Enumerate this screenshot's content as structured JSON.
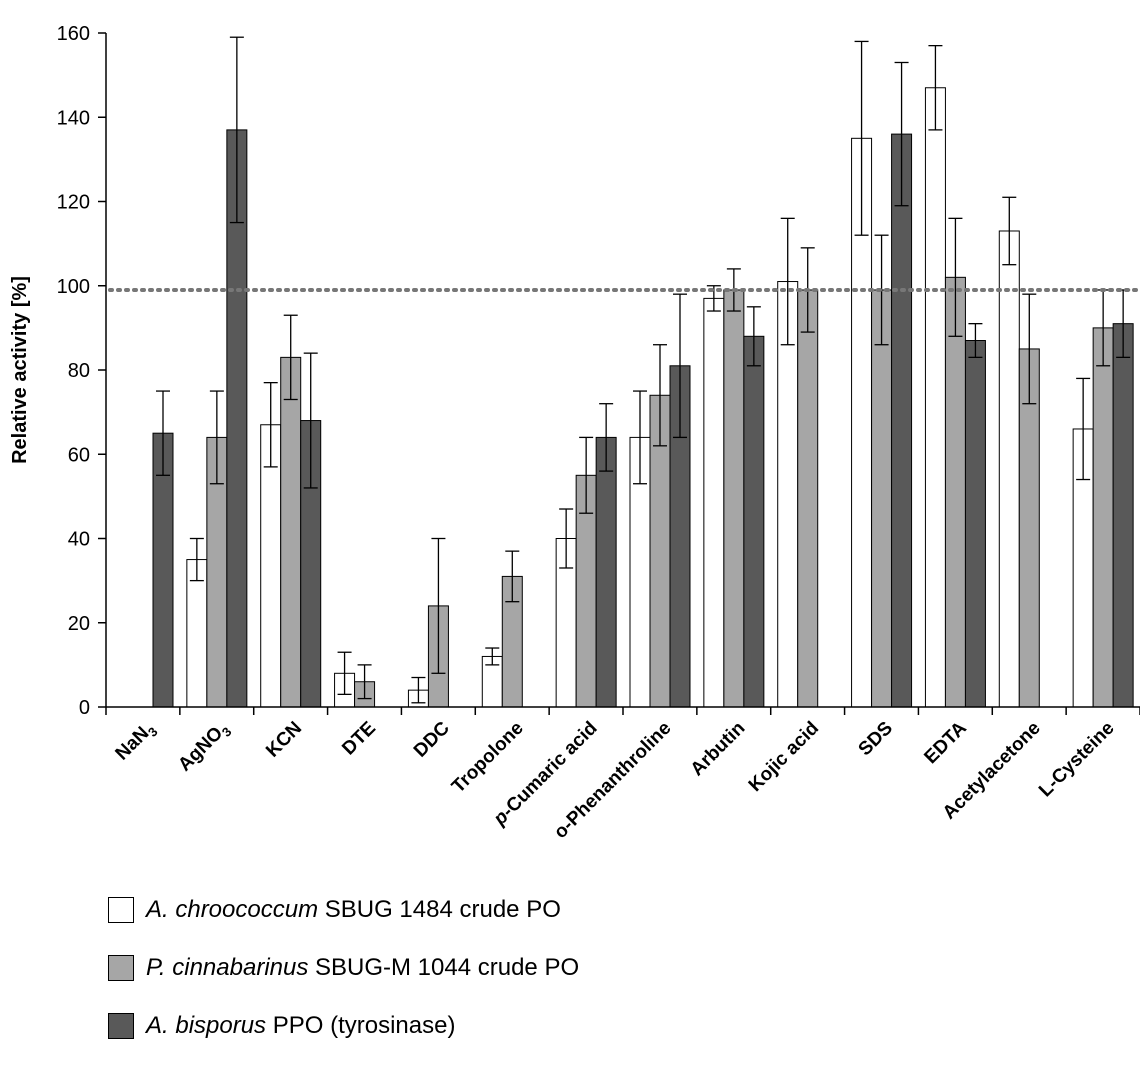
{
  "chart_data": {
    "type": "bar",
    "title": "",
    "xlabel": "",
    "ylabel": "Relative activity [%]",
    "ylim": [
      0,
      160
    ],
    "yticks": [
      0,
      20,
      40,
      60,
      80,
      100,
      120,
      140,
      160
    ],
    "reference_line": 99,
    "grid": false,
    "legend_position": "bottom",
    "categories": [
      {
        "pre": "NaN",
        "sub": "3",
        "post": "",
        "italic": ""
      },
      {
        "pre": "AgNO",
        "sub": "3",
        "post": "",
        "italic": ""
      },
      {
        "pre": "KCN",
        "sub": "",
        "post": "",
        "italic": ""
      },
      {
        "pre": "DTE",
        "sub": "",
        "post": "",
        "italic": ""
      },
      {
        "pre": "DDC",
        "sub": "",
        "post": "",
        "italic": ""
      },
      {
        "pre": "Tropolone",
        "sub": "",
        "post": "",
        "italic": ""
      },
      {
        "pre": "-Cumaric acid",
        "sub": "",
        "post": "",
        "italic": "p"
      },
      {
        "pre": "o-Phenanthroline",
        "sub": "",
        "post": "",
        "italic": ""
      },
      {
        "pre": "Arbutin",
        "sub": "",
        "post": "",
        "italic": ""
      },
      {
        "pre": "Kojic acid",
        "sub": "",
        "post": "",
        "italic": ""
      },
      {
        "pre": "SDS",
        "sub": "",
        "post": "",
        "italic": ""
      },
      {
        "pre": "EDTA",
        "sub": "",
        "post": "",
        "italic": ""
      },
      {
        "pre": "Acetylacetone",
        "sub": "",
        "post": "",
        "italic": ""
      },
      {
        "pre": "L-Cysteine",
        "sub": "",
        "post": "",
        "italic": ""
      }
    ],
    "series": [
      {
        "italic_name": "A. chroococcum",
        "name_rest": " SBUG 1484 crude PO",
        "color": "#ffffff",
        "values": [
          0,
          35,
          67,
          8,
          4,
          12,
          40,
          64,
          97,
          101,
          135,
          147,
          113,
          66
        ],
        "errors": [
          0,
          5,
          10,
          5,
          3,
          2,
          7,
          11,
          3,
          15,
          23,
          10,
          8,
          12
        ]
      },
      {
        "italic_name": "P. cinnabarinus",
        "name_rest": " SBUG-M 1044 crude PO",
        "color": "#a6a6a6",
        "values": [
          0,
          64,
          83,
          6,
          24,
          31,
          55,
          74,
          99,
          99,
          99,
          102,
          85,
          90
        ],
        "errors": [
          0,
          11,
          10,
          4,
          16,
          6,
          9,
          12,
          5,
          10,
          13,
          14,
          13,
          9
        ]
      },
      {
        "italic_name": "A. bisporus",
        "name_rest": " PPO (tyrosinase)",
        "color": "#595959",
        "values": [
          65,
          137,
          68,
          0,
          0,
          0,
          64,
          81,
          88,
          0,
          136,
          87,
          0,
          91
        ],
        "errors": [
          10,
          22,
          16,
          0,
          0,
          0,
          8,
          17,
          7,
          0,
          17,
          4,
          0,
          8
        ]
      }
    ]
  }
}
